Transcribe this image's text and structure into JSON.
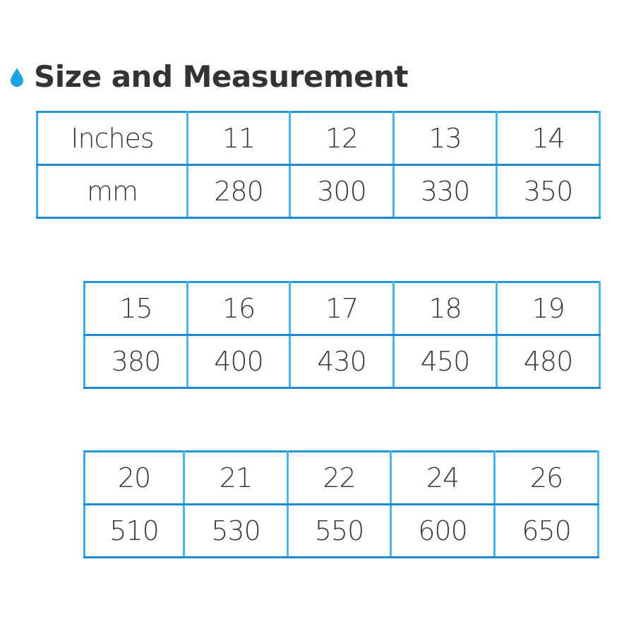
{
  "title": "Size and Measurement",
  "icon": "water-drop-icon",
  "accent_color": "#1aa3e0",
  "tables": [
    {
      "rows": [
        [
          "Inches",
          "11",
          "12",
          "13",
          "14"
        ],
        [
          "mm",
          "280",
          "300",
          "330",
          "350"
        ]
      ]
    },
    {
      "rows": [
        [
          "15",
          "16",
          "17",
          "18",
          "19"
        ],
        [
          "380",
          "400",
          "430",
          "450",
          "480"
        ]
      ]
    },
    {
      "rows": [
        [
          "20",
          "21",
          "22",
          "24",
          "26"
        ],
        [
          "510",
          "530",
          "550",
          "600",
          "650"
        ]
      ]
    }
  ]
}
